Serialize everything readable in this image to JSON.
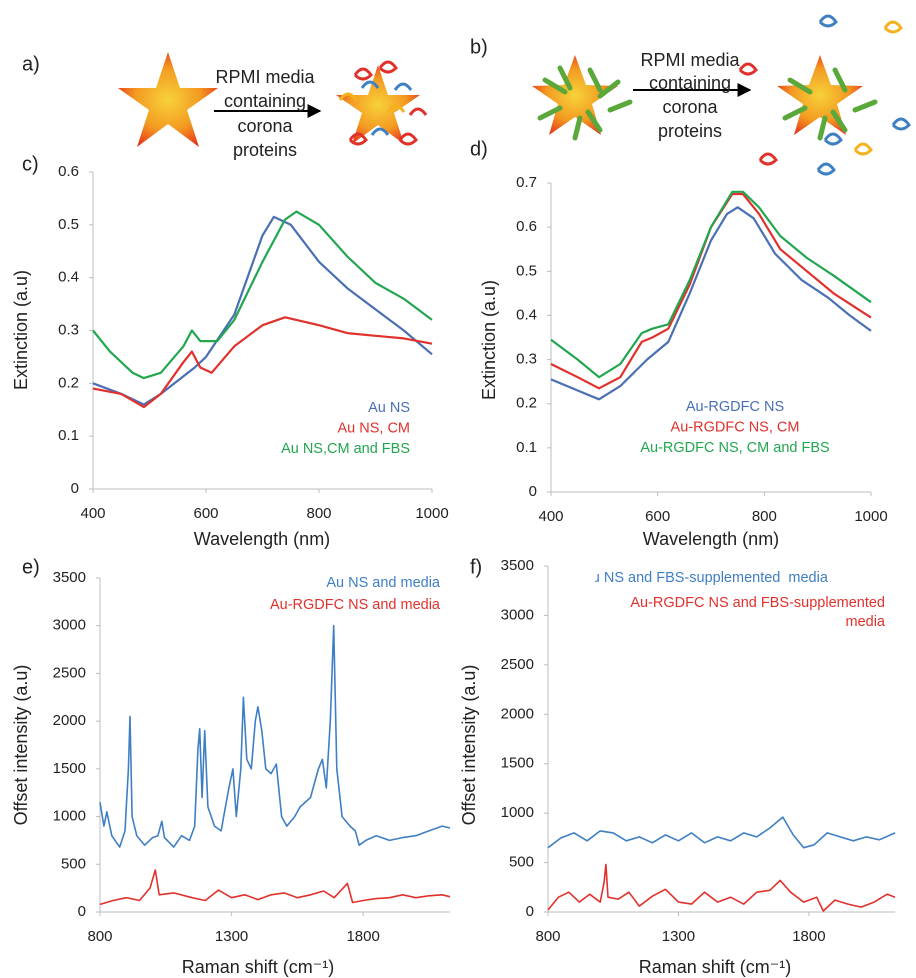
{
  "panels": [
    "a)",
    "b)"
  ],
  "schematics": [
    {
      "lines": [
        "RPMI media",
        "containing",
        "corona",
        "proteins"
      ]
    },
    {
      "lines": [
        "RPMI media",
        "containing",
        "corona",
        "proteins"
      ]
    }
  ],
  "chart_data": [
    {
      "type": "line",
      "label": "c)",
      "ylabel": "Extinction (a.u)",
      "xlabel": "Wavelength (nm)",
      "xlim": [
        400,
        1000
      ],
      "xticks": [
        400,
        600,
        800,
        1000
      ],
      "ylim": [
        0,
        0.6
      ],
      "yticks": [
        0,
        0.1,
        0.2,
        0.3,
        0.4,
        0.5,
        0.6
      ],
      "grid": false,
      "series": [
        {
          "name": "Au NS",
          "color": "#4a6fb5",
          "x": [
            400,
            450,
            490,
            520,
            580,
            600,
            650,
            680,
            700,
            720,
            750,
            800,
            850,
            900,
            950,
            1000
          ],
          "values": [
            0.2,
            0.18,
            0.16,
            0.18,
            0.23,
            0.25,
            0.33,
            0.42,
            0.48,
            0.515,
            0.5,
            0.43,
            0.38,
            0.34,
            0.3,
            0.255
          ]
        },
        {
          "name": "Au NS, CM",
          "color": "#e0312c",
          "x": [
            400,
            450,
            490,
            520,
            560,
            575,
            590,
            610,
            650,
            700,
            740,
            800,
            850,
            900,
            950,
            1000
          ],
          "values": [
            0.19,
            0.18,
            0.155,
            0.18,
            0.24,
            0.26,
            0.23,
            0.22,
            0.27,
            0.31,
            0.325,
            0.31,
            0.295,
            0.29,
            0.285,
            0.275
          ]
        },
        {
          "name": "Au NS,CM and  FBS",
          "color": "#22a650",
          "x": [
            400,
            430,
            470,
            490,
            520,
            560,
            575,
            590,
            620,
            650,
            700,
            740,
            760,
            800,
            850,
            900,
            950,
            1000
          ],
          "values": [
            0.3,
            0.26,
            0.22,
            0.21,
            0.22,
            0.27,
            0.3,
            0.28,
            0.28,
            0.32,
            0.43,
            0.51,
            0.525,
            0.5,
            0.44,
            0.39,
            0.36,
            0.32
          ]
        }
      ]
    },
    {
      "type": "line",
      "label": "d)",
      "ylabel": "Extinction (a.u)",
      "xlabel": "Wavelength (nm)",
      "xlim": [
        400,
        1000
      ],
      "xticks": [
        400,
        600,
        800,
        1000
      ],
      "ylim": [
        0,
        0.7
      ],
      "yticks": [
        0,
        0.1,
        0.2,
        0.3,
        0.4,
        0.5,
        0.6,
        0.7
      ],
      "grid": false,
      "series": [
        {
          "name": "Au-RGDFC NS",
          "color": "#4a6fb5",
          "x": [
            400,
            450,
            490,
            530,
            580,
            620,
            660,
            700,
            730,
            750,
            780,
            820,
            870,
            920,
            960,
            1000
          ],
          "values": [
            0.255,
            0.23,
            0.21,
            0.24,
            0.3,
            0.34,
            0.45,
            0.57,
            0.63,
            0.645,
            0.62,
            0.54,
            0.48,
            0.44,
            0.4,
            0.365
          ]
        },
        {
          "name": "Au-RGDFC NS, CM",
          "color": "#e0312c",
          "x": [
            400,
            450,
            490,
            530,
            570,
            590,
            620,
            660,
            700,
            740,
            760,
            790,
            830,
            880,
            930,
            1000
          ],
          "values": [
            0.29,
            0.26,
            0.235,
            0.26,
            0.34,
            0.35,
            0.37,
            0.47,
            0.6,
            0.675,
            0.675,
            0.63,
            0.55,
            0.5,
            0.45,
            0.395
          ]
        },
        {
          "name": "Au-RGDFC NS, CM and FBS",
          "color": "#22a650",
          "x": [
            400,
            450,
            490,
            530,
            570,
            590,
            620,
            660,
            700,
            740,
            760,
            790,
            830,
            880,
            930,
            1000
          ],
          "values": [
            0.345,
            0.3,
            0.26,
            0.29,
            0.36,
            0.37,
            0.38,
            0.48,
            0.6,
            0.68,
            0.68,
            0.645,
            0.58,
            0.53,
            0.49,
            0.43
          ]
        }
      ]
    },
    {
      "type": "line",
      "label": "e)",
      "ylabel": "Offset intensity (a.u)",
      "xlabel": "Raman shift (cm⁻¹)",
      "xlim": [
        800,
        2130
      ],
      "xticks": [
        800,
        1300,
        1800
      ],
      "ylim": [
        0,
        3500
      ],
      "yticks": [
        0,
        500,
        1000,
        1500,
        2000,
        2500,
        3000,
        3500
      ],
      "grid": false,
      "series": [
        {
          "name": "Au NS and media",
          "color": "#3f7fc4",
          "x": [
            800,
            815,
            826,
            845,
            875,
            895,
            908,
            914,
            922,
            940,
            970,
            1000,
            1020,
            1035,
            1045,
            1080,
            1110,
            1140,
            1160,
            1172,
            1179,
            1188,
            1198,
            1210,
            1235,
            1260,
            1290,
            1305,
            1318,
            1335,
            1345,
            1358,
            1375,
            1390,
            1400,
            1415,
            1430,
            1450,
            1470,
            1490,
            1510,
            1540,
            1560,
            1600,
            1630,
            1645,
            1660,
            1675,
            1688,
            1700,
            1720,
            1750,
            1770,
            1785,
            1810,
            1850,
            1900,
            1950,
            2000,
            2050,
            2100,
            2130
          ],
          "values": [
            1150,
            900,
            1050,
            800,
            680,
            850,
            1500,
            2050,
            1000,
            800,
            700,
            780,
            800,
            950,
            780,
            680,
            800,
            750,
            900,
            1700,
            1920,
            1200,
            1900,
            1100,
            900,
            850,
            1300,
            1500,
            1000,
            1500,
            2250,
            1600,
            1500,
            2000,
            2150,
            1900,
            1500,
            1450,
            1550,
            1000,
            900,
            1000,
            1100,
            1200,
            1500,
            1600,
            1300,
            2000,
            3000,
            1500,
            1000,
            900,
            850,
            700,
            750,
            800,
            750,
            780,
            800,
            850,
            900,
            880
          ]
        },
        {
          "name": "Au-RGDFC NS and media",
          "color": "#e0312c",
          "x": [
            800,
            850,
            900,
            950,
            990,
            1010,
            1025,
            1080,
            1150,
            1200,
            1250,
            1300,
            1350,
            1400,
            1450,
            1500,
            1550,
            1600,
            1650,
            1690,
            1740,
            1760,
            1800,
            1850,
            1900,
            1950,
            2000,
            2050,
            2100,
            2130
          ],
          "values": [
            80,
            120,
            150,
            120,
            250,
            440,
            180,
            200,
            150,
            120,
            230,
            150,
            180,
            130,
            180,
            200,
            150,
            180,
            220,
            150,
            300,
            100,
            120,
            140,
            150,
            180,
            150,
            170,
            180,
            160
          ]
        }
      ]
    },
    {
      "type": "line",
      "label": "f)",
      "ylabel": "Offset intensity (a.u)",
      "xlabel": "Raman shift (cm⁻¹)",
      "xlim": [
        800,
        2130
      ],
      "xticks": [
        800,
        1300,
        1800
      ],
      "ylim": [
        0,
        3500
      ],
      "yticks": [
        0,
        500,
        1000,
        1500,
        2000,
        2500,
        3000,
        3500
      ],
      "grid": false,
      "series": [
        {
          "name": "Au NS and FBS-supplemented  media",
          "color": "#3f7fc4",
          "x": [
            800,
            850,
            900,
            950,
            1000,
            1050,
            1100,
            1150,
            1200,
            1250,
            1300,
            1350,
            1400,
            1450,
            1500,
            1550,
            1600,
            1650,
            1700,
            1740,
            1780,
            1820,
            1870,
            1920,
            1970,
            2020,
            2070,
            2130
          ],
          "values": [
            650,
            750,
            800,
            720,
            820,
            800,
            720,
            760,
            700,
            780,
            720,
            800,
            700,
            760,
            720,
            800,
            760,
            850,
            960,
            780,
            650,
            680,
            800,
            760,
            720,
            760,
            730,
            800
          ]
        },
        {
          "name": "Au-RGDFC NS and FBS-supplemented media",
          "color": "#e0312c",
          "x": [
            800,
            840,
            880,
            920,
            960,
            1000,
            1015,
            1022,
            1030,
            1070,
            1110,
            1150,
            1200,
            1250,
            1300,
            1350,
            1400,
            1450,
            1500,
            1550,
            1600,
            1650,
            1690,
            1730,
            1780,
            1830,
            1855,
            1900,
            1950,
            2000,
            2050,
            2100,
            2130
          ],
          "values": [
            20,
            150,
            200,
            100,
            180,
            100,
            300,
            480,
            150,
            130,
            200,
            60,
            160,
            230,
            100,
            80,
            200,
            100,
            150,
            80,
            200,
            220,
            320,
            200,
            100,
            150,
            10,
            120,
            80,
            50,
            100,
            180,
            150
          ]
        }
      ]
    }
  ]
}
